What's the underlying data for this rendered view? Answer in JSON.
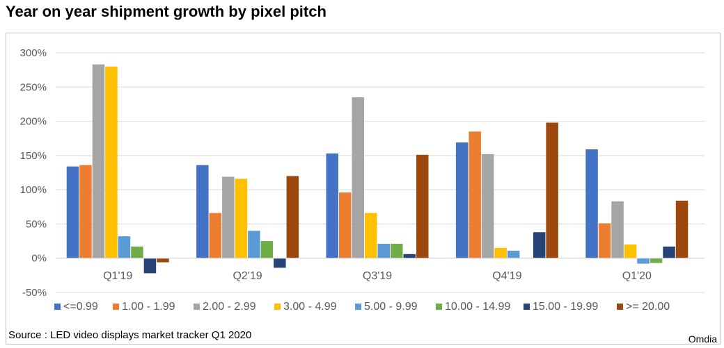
{
  "title": "Year on year shipment growth by pixel pitch",
  "source": "Source : LED video displays market tracker Q1 2020",
  "brand": "Omdia",
  "chart_data": {
    "type": "bar",
    "categories": [
      "Q1'19",
      "Q2'19",
      "Q3'19",
      "Q4'19",
      "Q1'20"
    ],
    "ylim": [
      -50,
      300
    ],
    "yticks": [
      -50,
      0,
      50,
      100,
      150,
      200,
      250,
      300
    ],
    "ytick_format": "percent",
    "grid": true,
    "legend_position": "bottom",
    "series": [
      {
        "name": "<=0.99",
        "color": "#4472C4",
        "values": [
          134,
          136,
          153,
          169,
          159
        ]
      },
      {
        "name": "1.00 - 1.99",
        "color": "#ED7D31",
        "values": [
          136,
          66,
          96,
          185,
          51
        ]
      },
      {
        "name": "2.00 - 2.99",
        "color": "#A5A5A5",
        "values": [
          283,
          119,
          235,
          152,
          83
        ]
      },
      {
        "name": "3.00 - 4.99",
        "color": "#FFC000",
        "values": [
          280,
          116,
          66,
          15,
          20
        ]
      },
      {
        "name": "5.00 - 9.99",
        "color": "#5B9BD5",
        "values": [
          32,
          40,
          21,
          11,
          -8
        ]
      },
      {
        "name": "10.00 - 14.99",
        "color": "#70AD47",
        "values": [
          17,
          25,
          21,
          0,
          -7
        ]
      },
      {
        "name": "15.00 - 19.99",
        "color": "#264478",
        "values": [
          -22,
          -14,
          6,
          38,
          17
        ]
      },
      {
        "name": ">= 20.00",
        "color": "#9E480E",
        "values": [
          -6,
          120,
          151,
          198,
          84
        ]
      }
    ]
  }
}
